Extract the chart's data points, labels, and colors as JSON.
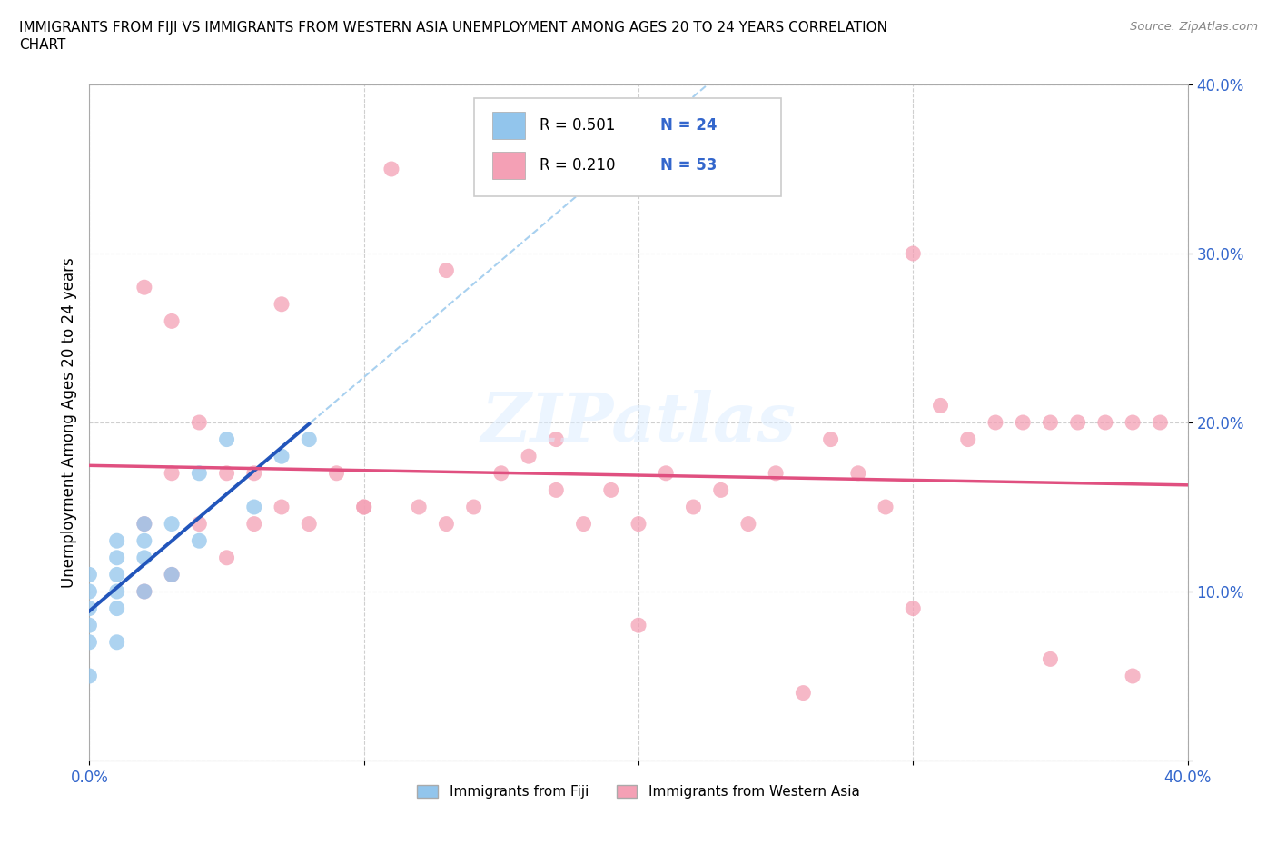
{
  "title_line1": "IMMIGRANTS FROM FIJI VS IMMIGRANTS FROM WESTERN ASIA UNEMPLOYMENT AMONG AGES 20 TO 24 YEARS CORRELATION",
  "title_line2": "CHART",
  "source_text": "Source: ZipAtlas.com",
  "ylabel": "Unemployment Among Ages 20 to 24 years",
  "xlim": [
    0.0,
    0.4
  ],
  "ylim": [
    0.0,
    0.4
  ],
  "fiji_color": "#92C5EC",
  "western_asia_color": "#F4A0B5",
  "fiji_line_color": "#2255BB",
  "western_asia_line_color": "#E05080",
  "fiji_dashed_color": "#92C5EC",
  "fiji_R": 0.501,
  "fiji_N": 24,
  "western_asia_R": 0.21,
  "western_asia_N": 53,
  "fiji_x": [
    0.0,
    0.0,
    0.0,
    0.0,
    0.0,
    0.0,
    0.01,
    0.01,
    0.01,
    0.01,
    0.01,
    0.01,
    0.02,
    0.02,
    0.02,
    0.02,
    0.03,
    0.03,
    0.04,
    0.04,
    0.05,
    0.06,
    0.07,
    0.08
  ],
  "fiji_y": [
    0.05,
    0.07,
    0.08,
    0.09,
    0.1,
    0.11,
    0.07,
    0.09,
    0.1,
    0.11,
    0.12,
    0.13,
    0.1,
    0.12,
    0.13,
    0.14,
    0.11,
    0.14,
    0.13,
    0.17,
    0.19,
    0.15,
    0.18,
    0.19
  ],
  "western_asia_x": [
    0.02,
    0.02,
    0.02,
    0.03,
    0.03,
    0.03,
    0.04,
    0.04,
    0.05,
    0.05,
    0.06,
    0.06,
    0.07,
    0.07,
    0.08,
    0.09,
    0.1,
    0.11,
    0.12,
    0.13,
    0.14,
    0.15,
    0.16,
    0.17,
    0.17,
    0.18,
    0.19,
    0.2,
    0.21,
    0.22,
    0.23,
    0.24,
    0.25,
    0.26,
    0.27,
    0.28,
    0.29,
    0.3,
    0.31,
    0.32,
    0.33,
    0.34,
    0.35,
    0.36,
    0.37,
    0.38,
    0.39,
    0.13,
    0.2,
    0.3,
    0.35,
    0.38,
    0.1
  ],
  "western_asia_y": [
    0.1,
    0.14,
    0.28,
    0.11,
    0.17,
    0.26,
    0.14,
    0.2,
    0.12,
    0.17,
    0.14,
    0.17,
    0.15,
    0.27,
    0.14,
    0.17,
    0.15,
    0.35,
    0.15,
    0.14,
    0.15,
    0.17,
    0.18,
    0.16,
    0.19,
    0.14,
    0.16,
    0.14,
    0.17,
    0.15,
    0.16,
    0.14,
    0.17,
    0.04,
    0.19,
    0.17,
    0.15,
    0.09,
    0.21,
    0.19,
    0.2,
    0.2,
    0.2,
    0.2,
    0.2,
    0.05,
    0.2,
    0.29,
    0.08,
    0.3,
    0.06,
    0.2,
    0.15
  ]
}
